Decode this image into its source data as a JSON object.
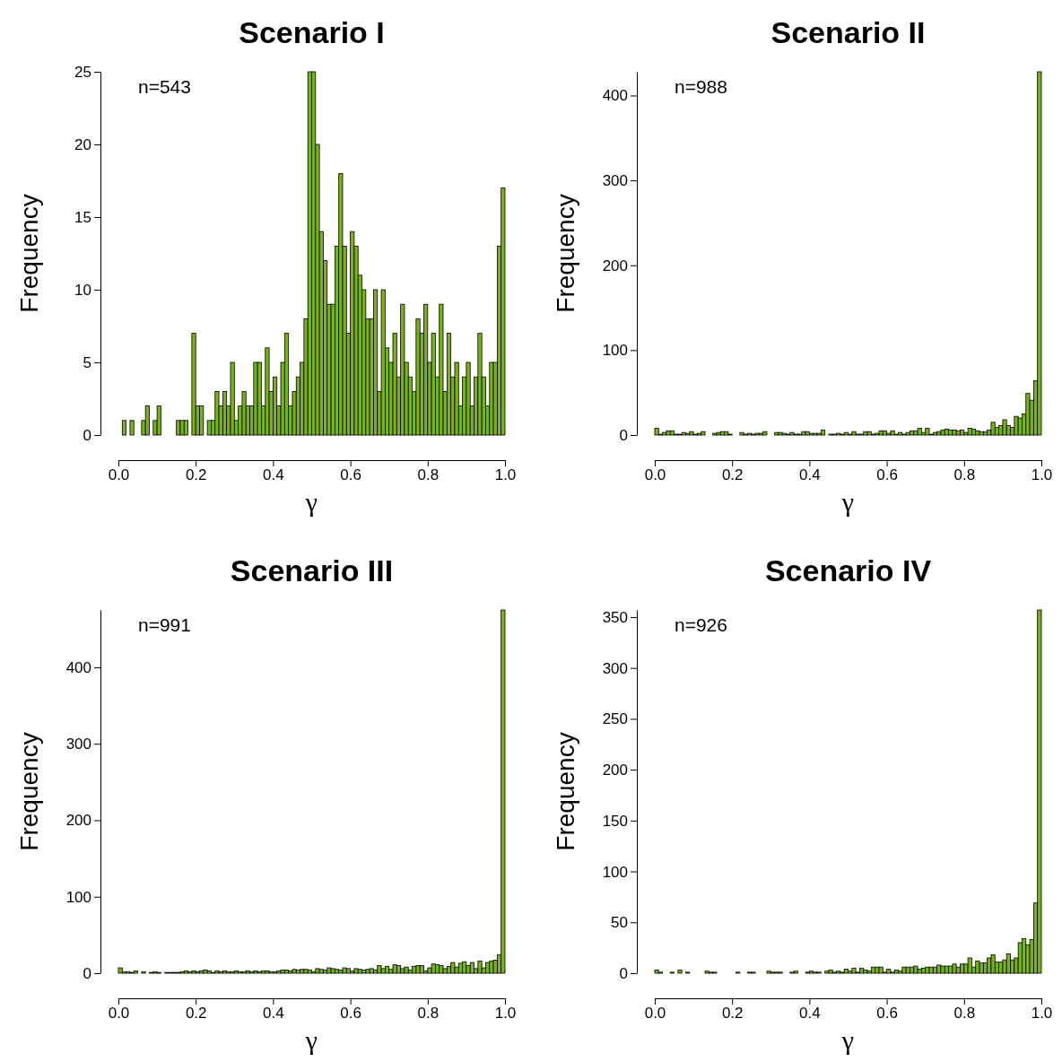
{
  "chart_data": [
    {
      "type": "histogram",
      "title": "Scenario I",
      "xlabel": "γ",
      "ylabel": "Frequency",
      "annotations": [
        "n=543"
      ],
      "color": "#7ab317",
      "bins": [
        0,
        0.01,
        0.02,
        0.03,
        0.04,
        0.05,
        0.06,
        0.07,
        0.08,
        0.09,
        0.1,
        0.11,
        0.12,
        0.13,
        0.14,
        0.15,
        0.16,
        0.17,
        0.18,
        0.19,
        0.2,
        0.21,
        0.22,
        0.23,
        0.24,
        0.25,
        0.26,
        0.27,
        0.28,
        0.29,
        0.3,
        0.31,
        0.32,
        0.33,
        0.34,
        0.35,
        0.36,
        0.37,
        0.38,
        0.39,
        0.4,
        0.41,
        0.42,
        0.43,
        0.44,
        0.45,
        0.46,
        0.47,
        0.48,
        0.49,
        0.5,
        0.51,
        0.52,
        0.53,
        0.54,
        0.55,
        0.56,
        0.57,
        0.58,
        0.59,
        0.6,
        0.61,
        0.62,
        0.63,
        0.64,
        0.65,
        0.66,
        0.67,
        0.68,
        0.69,
        0.7,
        0.71,
        0.72,
        0.73,
        0.74,
        0.75,
        0.76,
        0.77,
        0.78,
        0.79,
        0.8,
        0.81,
        0.82,
        0.83,
        0.84,
        0.85,
        0.86,
        0.87,
        0.88,
        0.89,
        0.9,
        0.91,
        0.92,
        0.93,
        0.94,
        0.95,
        0.96,
        0.97,
        0.98,
        0.99,
        1
      ],
      "values": [
        0,
        1,
        0,
        1,
        0,
        0,
        1,
        2,
        0,
        1,
        2,
        0,
        0,
        0,
        0,
        1,
        1,
        1,
        0,
        7,
        2,
        2,
        0,
        1,
        1,
        3,
        2,
        3,
        2,
        5,
        1,
        2,
        3,
        2,
        2,
        5,
        5,
        2,
        6,
        3,
        4,
        2,
        5,
        7,
        2,
        3,
        4,
        5,
        8,
        25,
        25,
        20,
        14,
        12,
        9,
        9,
        13,
        18,
        13,
        7,
        14,
        13,
        11,
        10,
        8,
        8,
        10,
        3,
        10,
        6,
        5,
        7,
        4,
        9,
        5,
        4,
        3,
        8,
        7,
        9,
        5,
        7,
        4,
        9,
        3,
        7,
        4,
        5,
        2,
        4,
        5,
        2,
        4,
        7,
        4,
        2,
        5,
        5,
        13,
        17
      ],
      "xlim": [
        0,
        1
      ],
      "xticks": [
        {
          "value": 0,
          "label": "0.0"
        },
        {
          "value": 0.2,
          "label": "0.2"
        },
        {
          "value": 0.4,
          "label": "0.4"
        },
        {
          "value": 0.6,
          "label": "0.6"
        },
        {
          "value": 0.8,
          "label": "0.8"
        },
        {
          "value": 1,
          "label": "1.0"
        }
      ],
      "ylim": [
        0,
        25
      ],
      "yticks": [
        0,
        5,
        10,
        15,
        20,
        25
      ]
    },
    {
      "type": "histogram",
      "title": "Scenario II",
      "xlabel": "γ",
      "ylabel": "Frequency",
      "annotations": [
        "n=988"
      ],
      "color": "#7ab317",
      "bins": [
        0,
        0.01,
        0.02,
        0.03,
        0.04,
        0.05,
        0.06,
        0.07,
        0.08,
        0.09,
        0.1,
        0.11,
        0.12,
        0.13,
        0.14,
        0.15,
        0.16,
        0.17,
        0.18,
        0.19,
        0.2,
        0.21,
        0.22,
        0.23,
        0.24,
        0.25,
        0.26,
        0.27,
        0.28,
        0.29,
        0.3,
        0.31,
        0.32,
        0.33,
        0.34,
        0.35,
        0.36,
        0.37,
        0.38,
        0.39,
        0.4,
        0.41,
        0.42,
        0.43,
        0.44,
        0.45,
        0.46,
        0.47,
        0.48,
        0.49,
        0.5,
        0.51,
        0.52,
        0.53,
        0.54,
        0.55,
        0.56,
        0.57,
        0.58,
        0.59,
        0.6,
        0.61,
        0.62,
        0.63,
        0.64,
        0.65,
        0.66,
        0.67,
        0.68,
        0.69,
        0.7,
        0.71,
        0.72,
        0.73,
        0.74,
        0.75,
        0.76,
        0.77,
        0.78,
        0.79,
        0.8,
        0.81,
        0.82,
        0.83,
        0.84,
        0.85,
        0.86,
        0.87,
        0.88,
        0.89,
        0.9,
        0.91,
        0.92,
        0.93,
        0.94,
        0.95,
        0.96,
        0.97,
        0.98,
        0.99,
        1
      ],
      "values": [
        8,
        1,
        3,
        5,
        5,
        1,
        1,
        3,
        2,
        4,
        1,
        2,
        4,
        0,
        0,
        2,
        3,
        4,
        4,
        1,
        0,
        0,
        3,
        1,
        2,
        1,
        2,
        2,
        4,
        0,
        0,
        3,
        3,
        2,
        1,
        3,
        1,
        1,
        4,
        4,
        2,
        2,
        2,
        6,
        0,
        1,
        1,
        2,
        1,
        3,
        1,
        4,
        1,
        1,
        4,
        4,
        1,
        2,
        5,
        5,
        2,
        5,
        1,
        3,
        1,
        3,
        5,
        5,
        8,
        3,
        8,
        1,
        3,
        4,
        6,
        7,
        6,
        6,
        5,
        6,
        3,
        8,
        7,
        5,
        4,
        4,
        6,
        15,
        9,
        11,
        18,
        11,
        9,
        22,
        20,
        25,
        49,
        41,
        64,
        428
      ],
      "xlim": [
        0,
        1
      ],
      "xticks": [
        {
          "value": 0,
          "label": "0.0"
        },
        {
          "value": 0.2,
          "label": "0.2"
        },
        {
          "value": 0.4,
          "label": "0.4"
        },
        {
          "value": 0.6,
          "label": "0.6"
        },
        {
          "value": 0.8,
          "label": "0.8"
        },
        {
          "value": 1,
          "label": "1.0"
        }
      ],
      "ylim": [
        0,
        428
      ],
      "yticks": [
        0,
        100,
        200,
        300,
        400
      ]
    },
    {
      "type": "histogram",
      "title": "Scenario III",
      "xlabel": "γ",
      "ylabel": "Frequency",
      "annotations": [
        "n=991"
      ],
      "color": "#7ab317",
      "bins": [
        0,
        0.01,
        0.02,
        0.03,
        0.04,
        0.05,
        0.06,
        0.07,
        0.08,
        0.09,
        0.1,
        0.11,
        0.12,
        0.13,
        0.14,
        0.15,
        0.16,
        0.17,
        0.18,
        0.19,
        0.2,
        0.21,
        0.22,
        0.23,
        0.24,
        0.25,
        0.26,
        0.27,
        0.28,
        0.29,
        0.3,
        0.31,
        0.32,
        0.33,
        0.34,
        0.35,
        0.36,
        0.37,
        0.38,
        0.39,
        0.4,
        0.41,
        0.42,
        0.43,
        0.44,
        0.45,
        0.46,
        0.47,
        0.48,
        0.49,
        0.5,
        0.51,
        0.52,
        0.53,
        0.54,
        0.55,
        0.56,
        0.57,
        0.58,
        0.59,
        0.6,
        0.61,
        0.62,
        0.63,
        0.64,
        0.65,
        0.66,
        0.67,
        0.68,
        0.69,
        0.7,
        0.71,
        0.72,
        0.73,
        0.74,
        0.75,
        0.76,
        0.77,
        0.78,
        0.79,
        0.8,
        0.81,
        0.82,
        0.83,
        0.84,
        0.85,
        0.86,
        0.87,
        0.88,
        0.89,
        0.9,
        0.91,
        0.92,
        0.93,
        0.94,
        0.95,
        0.96,
        0.97,
        0.98,
        0.99,
        1
      ],
      "values": [
        7,
        2,
        2,
        1,
        3,
        0,
        2,
        0,
        1,
        2,
        1,
        0,
        1,
        1,
        1,
        1,
        2,
        3,
        2,
        3,
        2,
        3,
        4,
        3,
        1,
        3,
        2,
        3,
        2,
        2,
        3,
        2,
        2,
        3,
        2,
        3,
        2,
        3,
        3,
        2,
        2,
        3,
        4,
        4,
        3,
        5,
        4,
        5,
        5,
        4,
        2,
        6,
        5,
        4,
        7,
        6,
        5,
        4,
        7,
        6,
        3,
        6,
        5,
        4,
        5,
        6,
        4,
        10,
        6,
        9,
        5,
        11,
        10,
        6,
        8,
        4,
        9,
        10,
        10,
        3,
        7,
        12,
        11,
        10,
        6,
        9,
        14,
        8,
        13,
        15,
        10,
        14,
        6,
        16,
        7,
        14,
        16,
        17,
        24,
        475
      ],
      "xlim": [
        0,
        1
      ],
      "xticks": [
        {
          "value": 0,
          "label": "0.0"
        },
        {
          "value": 0.2,
          "label": "0.2"
        },
        {
          "value": 0.4,
          "label": "0.4"
        },
        {
          "value": 0.6,
          "label": "0.6"
        },
        {
          "value": 0.8,
          "label": "0.8"
        },
        {
          "value": 1,
          "label": "1.0"
        }
      ],
      "ylim": [
        0,
        475
      ],
      "yticks": [
        0,
        100,
        200,
        300,
        400
      ]
    },
    {
      "type": "histogram",
      "title": "Scenario IV",
      "xlabel": "γ",
      "ylabel": "Frequency",
      "annotations": [
        "n=926"
      ],
      "color": "#7ab317",
      "bins": [
        0,
        0.01,
        0.02,
        0.03,
        0.04,
        0.05,
        0.06,
        0.07,
        0.08,
        0.09,
        0.1,
        0.11,
        0.12,
        0.13,
        0.14,
        0.15,
        0.16,
        0.17,
        0.18,
        0.19,
        0.2,
        0.21,
        0.22,
        0.23,
        0.24,
        0.25,
        0.26,
        0.27,
        0.28,
        0.29,
        0.3,
        0.31,
        0.32,
        0.33,
        0.34,
        0.35,
        0.36,
        0.37,
        0.38,
        0.39,
        0.4,
        0.41,
        0.42,
        0.43,
        0.44,
        0.45,
        0.46,
        0.47,
        0.48,
        0.49,
        0.5,
        0.51,
        0.52,
        0.53,
        0.54,
        0.55,
        0.56,
        0.57,
        0.58,
        0.59,
        0.6,
        0.61,
        0.62,
        0.63,
        0.64,
        0.65,
        0.66,
        0.67,
        0.68,
        0.69,
        0.7,
        0.71,
        0.72,
        0.73,
        0.74,
        0.75,
        0.76,
        0.77,
        0.78,
        0.79,
        0.8,
        0.81,
        0.82,
        0.83,
        0.84,
        0.85,
        0.86,
        0.87,
        0.88,
        0.89,
        0.9,
        0.91,
        0.92,
        0.93,
        0.94,
        0.95,
        0.96,
        0.97,
        0.98,
        0.99,
        1
      ],
      "values": [
        3,
        1,
        0,
        0,
        1,
        0,
        3,
        0,
        1,
        0,
        0,
        0,
        0,
        2,
        1,
        1,
        0,
        0,
        0,
        0,
        0,
        1,
        0,
        0,
        1,
        1,
        0,
        0,
        0,
        2,
        1,
        1,
        1,
        0,
        0,
        1,
        2,
        0,
        0,
        1,
        2,
        1,
        1,
        0,
        2,
        3,
        1,
        2,
        1,
        4,
        2,
        5,
        1,
        5,
        3,
        2,
        6,
        6,
        6,
        1,
        4,
        1,
        3,
        2,
        6,
        6,
        6,
        7,
        4,
        5,
        6,
        6,
        6,
        8,
        7,
        7,
        7,
        9,
        6,
        9,
        9,
        15,
        6,
        12,
        10,
        10,
        15,
        18,
        11,
        11,
        13,
        19,
        13,
        15,
        30,
        34,
        28,
        33,
        69,
        357
      ],
      "xlim": [
        0,
        1
      ],
      "xticks": [
        {
          "value": 0,
          "label": "0.0"
        },
        {
          "value": 0.2,
          "label": "0.2"
        },
        {
          "value": 0.4,
          "label": "0.4"
        },
        {
          "value": 0.6,
          "label": "0.6"
        },
        {
          "value": 0.8,
          "label": "0.8"
        },
        {
          "value": 1,
          "label": "1.0"
        }
      ],
      "ylim": [
        0,
        357
      ],
      "yticks": [
        0,
        50,
        100,
        150,
        200,
        250,
        300,
        350
      ]
    }
  ]
}
